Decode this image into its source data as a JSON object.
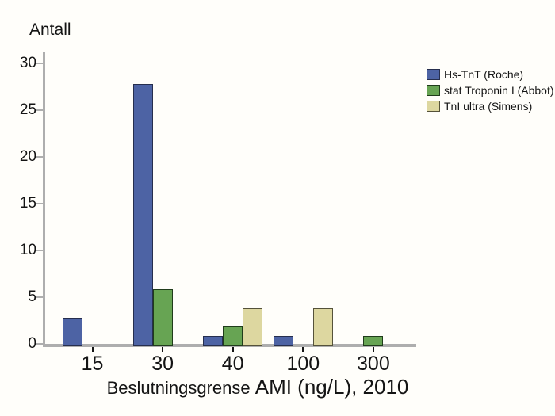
{
  "chart": {
    "y_axis_title": "Antall",
    "x_axis_title_part1": "Beslutningsgrense",
    "x_axis_title_part2": "AMI (ng/L), 2010"
  },
  "chart_data": {
    "type": "bar",
    "title": "",
    "ylabel": "Antall",
    "xlabel": "Beslutningsgrense AMI (ng/L), 2010",
    "categories": [
      "15",
      "30",
      "40",
      "100",
      "300"
    ],
    "series": [
      {
        "name": "Hs-TnT (Roche)",
        "color": "#4d63a4",
        "border_color": "#262e4e",
        "values": [
          3,
          28,
          1,
          1,
          0
        ]
      },
      {
        "name": "stat Troponin I (Abbot)",
        "color": "#67a453",
        "border_color": "#203c1b",
        "values": [
          0,
          6,
          2,
          0,
          1
        ]
      },
      {
        "name": "TnI ultra (Simens)",
        "color": "#ddd7a0",
        "border_color": "#55523a",
        "values": [
          0,
          0,
          4,
          4,
          0
        ]
      }
    ],
    "ylim": [
      0,
      30
    ],
    "y_ticks": [
      0,
      5,
      10,
      15,
      20,
      25,
      30
    ],
    "grid": false,
    "legend_position": "right",
    "axis_color": "#aeaeae",
    "text_color": "#141414",
    "background_color": "#fffefa"
  }
}
